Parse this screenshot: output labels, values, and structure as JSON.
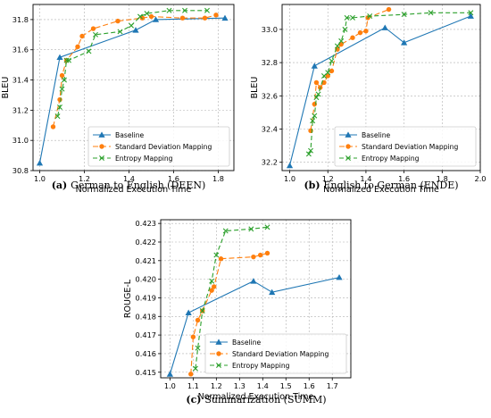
{
  "chart_data": [
    {
      "type": "line",
      "caption_tag": "(a)",
      "caption_text": "German to English (DEEN)",
      "xlabel": "Normalized Execution Time",
      "ylabel": "BLEU",
      "xlim": [
        0.97,
        1.87
      ],
      "ylim": [
        30.8,
        31.9
      ],
      "xticks": [
        1.0,
        1.2,
        1.4,
        1.6,
        1.8
      ],
      "yticks": [
        30.8,
        31.0,
        31.2,
        31.4,
        31.6,
        31.8
      ],
      "tick_decimals": 1,
      "legend_position": "lower-right",
      "grid": true,
      "series": [
        {
          "name": "Baseline",
          "color": "#1f77b4",
          "marker": "triangle",
          "dash": "",
          "x": [
            1.0,
            1.09,
            1.43,
            1.52,
            1.83
          ],
          "y": [
            30.85,
            31.55,
            31.73,
            31.8,
            31.81
          ]
        },
        {
          "name": "Standard Deviation Mapping",
          "color": "#ff7f0e",
          "marker": "circle",
          "dash": "6,3",
          "x": [
            1.06,
            1.09,
            1.1,
            1.12,
            1.17,
            1.19,
            1.24,
            1.35,
            1.46,
            1.5,
            1.64,
            1.74,
            1.79
          ],
          "y": [
            31.09,
            31.27,
            31.43,
            31.53,
            31.62,
            31.69,
            31.74,
            31.79,
            31.81,
            31.82,
            31.81,
            31.81,
            31.83
          ]
        },
        {
          "name": "Entropy Mapping",
          "color": "#2ca02c",
          "marker": "x",
          "dash": "5,3",
          "x": [
            1.08,
            1.09,
            1.1,
            1.11,
            1.12,
            1.13,
            1.22,
            1.25,
            1.36,
            1.41,
            1.45,
            1.48,
            1.58,
            1.65,
            1.75
          ],
          "y": [
            31.16,
            31.22,
            31.34,
            31.4,
            31.53,
            31.53,
            31.59,
            31.7,
            31.72,
            31.76,
            31.82,
            31.84,
            31.86,
            31.86,
            31.86
          ]
        }
      ]
    },
    {
      "type": "line",
      "caption_tag": "(b)",
      "caption_text": "English to German (ENDE)",
      "xlabel": "Normalized Execution Time",
      "ylabel": "BLEU",
      "xlim": [
        0.96,
        2.0
      ],
      "ylim": [
        32.15,
        33.15
      ],
      "xticks": [
        1.0,
        1.2,
        1.4,
        1.6,
        1.8,
        2.0
      ],
      "yticks": [
        32.2,
        32.4,
        32.6,
        32.8,
        33.0
      ],
      "tick_decimals": 1,
      "legend_position": "lower-right",
      "grid": true,
      "series": [
        {
          "name": "Baseline",
          "color": "#1f77b4",
          "marker": "triangle",
          "dash": "",
          "x": [
            1.0,
            1.13,
            1.5,
            1.6,
            1.95
          ],
          "y": [
            32.18,
            32.78,
            33.01,
            32.92,
            33.08
          ]
        },
        {
          "name": "Standard Deviation Mapping",
          "color": "#ff7f0e",
          "marker": "circle",
          "dash": "6,3",
          "x": [
            1.11,
            1.13,
            1.14,
            1.16,
            1.18,
            1.2,
            1.22,
            1.25,
            1.27,
            1.33,
            1.37,
            1.4,
            1.41,
            1.52
          ],
          "y": [
            32.39,
            32.55,
            32.68,
            32.65,
            32.68,
            32.72,
            32.75,
            32.88,
            32.91,
            32.95,
            32.98,
            32.99,
            33.07,
            33.12
          ]
        },
        {
          "name": "Entropy Mapping",
          "color": "#2ca02c",
          "marker": "x",
          "dash": "5,3",
          "x": [
            1.1,
            1.11,
            1.12,
            1.13,
            1.14,
            1.15,
            1.18,
            1.2,
            1.22,
            1.25,
            1.27,
            1.29,
            1.3,
            1.33,
            1.42,
            1.6,
            1.74,
            1.95
          ],
          "y": [
            32.25,
            32.27,
            32.45,
            32.48,
            32.59,
            32.61,
            32.72,
            32.74,
            32.81,
            32.9,
            32.93,
            33.0,
            33.07,
            33.07,
            33.08,
            33.09,
            33.1,
            33.1
          ]
        }
      ]
    },
    {
      "type": "line",
      "caption_tag": "(c)",
      "caption_text": "Summarization (SUMM)",
      "xlabel": "Normalized Execution Time",
      "ylabel": "ROUGE-L",
      "xlim": [
        0.96,
        1.78
      ],
      "ylim": [
        0.4147,
        0.4232
      ],
      "xticks": [
        1.0,
        1.1,
        1.2,
        1.3,
        1.4,
        1.5,
        1.6,
        1.7
      ],
      "yticks": [
        0.415,
        0.416,
        0.417,
        0.418,
        0.419,
        0.42,
        0.421,
        0.422,
        0.423
      ],
      "tick_decimals": 3,
      "legend_position": "lower-right",
      "grid": true,
      "series": [
        {
          "name": "Baseline",
          "color": "#1f77b4",
          "marker": "triangle",
          "dash": "",
          "x": [
            1.0,
            1.08,
            1.36,
            1.44,
            1.73
          ],
          "y": [
            0.4149,
            0.4182,
            0.4199,
            0.4193,
            0.4201
          ]
        },
        {
          "name": "Standard Deviation Mapping",
          "color": "#ff7f0e",
          "marker": "circle",
          "dash": "6,3",
          "x": [
            1.09,
            1.1,
            1.12,
            1.14,
            1.18,
            1.19,
            1.22,
            1.36,
            1.39,
            1.42
          ],
          "y": [
            0.4149,
            0.4169,
            0.4178,
            0.4183,
            0.4194,
            0.4196,
            0.4211,
            0.4212,
            0.4213,
            0.4214
          ]
        },
        {
          "name": "Entropy Mapping",
          "color": "#2ca02c",
          "marker": "x",
          "dash": "5,3",
          "x": [
            1.11,
            1.12,
            1.14,
            1.18,
            1.2,
            1.24,
            1.35,
            1.42
          ],
          "y": [
            0.4152,
            0.4163,
            0.4183,
            0.4199,
            0.4213,
            0.4226,
            0.4227,
            0.4228
          ]
        }
      ]
    }
  ]
}
